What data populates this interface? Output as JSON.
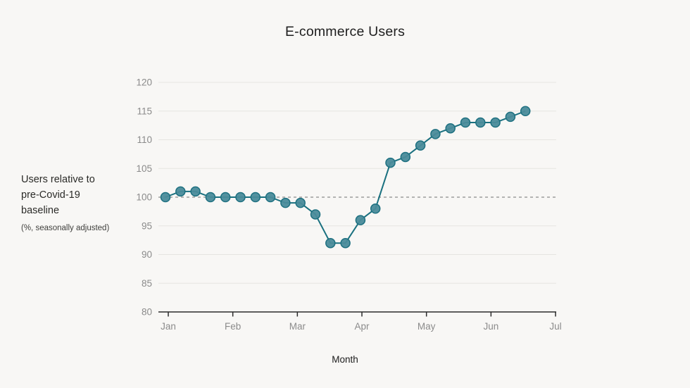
{
  "page": {
    "background": "#f8f7f5"
  },
  "annotation": {
    "line1": "Users relative to",
    "line2": "pre-Covid-19",
    "line3": "baseline",
    "subnote": "(%, seasonally adjusted)"
  },
  "chart_data": {
    "type": "line",
    "title": "E-commerce Users",
    "xlabel": "Month",
    "ylabel": "Users relative to pre-Covid-19 baseline (%, seasonally adjusted)",
    "x_unit": "week_index_from_jan",
    "x": [
      0,
      1,
      2,
      3,
      4,
      5,
      6,
      7,
      8,
      9,
      10,
      11,
      12,
      13,
      14,
      15,
      16,
      17,
      18,
      19,
      20,
      21,
      22,
      23,
      24
    ],
    "values": [
      100,
      101,
      101,
      100,
      100,
      100,
      100,
      100,
      99,
      99,
      97,
      92,
      92,
      96,
      98,
      106,
      107,
      109,
      111,
      112,
      113,
      113,
      113,
      114,
      115
    ],
    "x_tick_labels": [
      "Jan",
      "Feb",
      "Mar",
      "Apr",
      "May",
      "Jun",
      "Jul"
    ],
    "y_ticks": [
      80,
      85,
      90,
      95,
      100,
      105,
      110,
      115,
      120
    ],
    "ylim": [
      80,
      120
    ],
    "baseline": 100,
    "grid": "horizontal",
    "legend": "none",
    "marker": "circle",
    "colors": {
      "line": "#19707f",
      "marker_fill": "#4a8b9a",
      "marker_stroke": "#1d7080",
      "grid": "#e6e5e1",
      "baseline_dash": "#8c8c8c",
      "axis": "#2b2b2b",
      "tick_label": "#8b8b8b",
      "title_text": "#1e1e1e"
    }
  }
}
